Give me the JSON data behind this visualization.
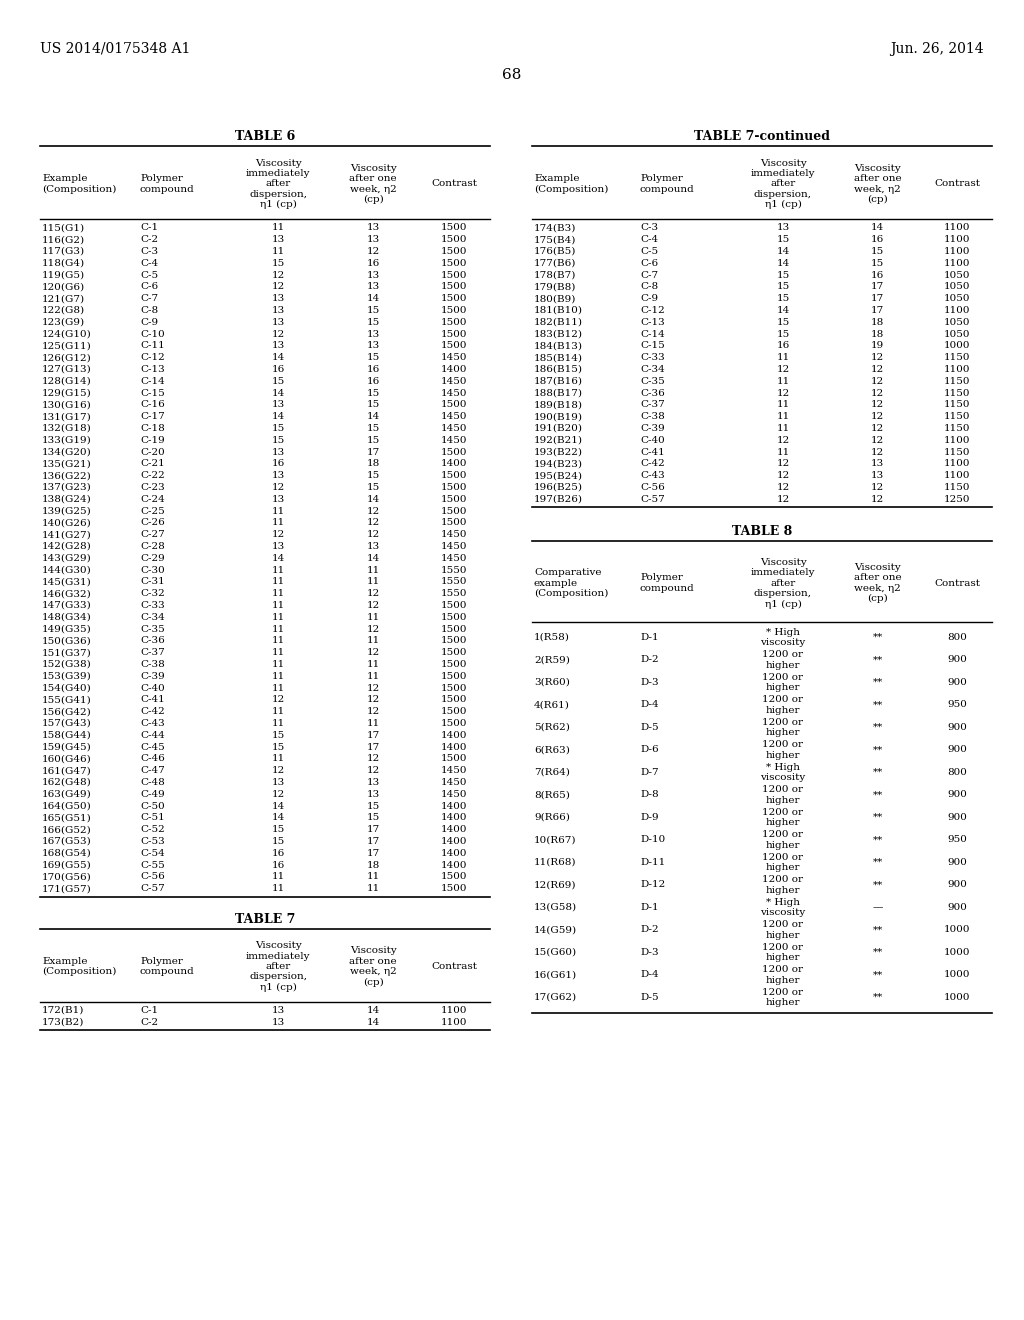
{
  "header_left": "US 2014/0175348 A1",
  "header_right": "Jun. 26, 2014",
  "page_number": "68",
  "table6_title": "TABLE 6",
  "table7c_title": "TABLE 7-continued",
  "table7_title": "TABLE 7",
  "table8_title": "TABLE 8",
  "col_headers_std": [
    "Example\n(Composition)",
    "Polymer\ncompound",
    "Viscosity\nimmediately\nafter\ndispersion,\nη1 (cp)",
    "Viscosity\nafter one\nweek, η2\n(cp)",
    "Contrast"
  ],
  "col_headers_t8": [
    "Comparative\nexample\n(Composition)",
    "Polymer\ncompound",
    "Viscosity\nimmediately\nafter\ndispersion,\nη1 (cp)",
    "Viscosity\nafter one\nweek, η2\n(cp)",
    "Contrast"
  ],
  "table6_data": [
    [
      "115(G1)",
      "C-1",
      "11",
      "13",
      "1500"
    ],
    [
      "116(G2)",
      "C-2",
      "13",
      "13",
      "1500"
    ],
    [
      "117(G3)",
      "C-3",
      "11",
      "12",
      "1500"
    ],
    [
      "118(G4)",
      "C-4",
      "15",
      "16",
      "1500"
    ],
    [
      "119(G5)",
      "C-5",
      "12",
      "13",
      "1500"
    ],
    [
      "120(G6)",
      "C-6",
      "12",
      "13",
      "1500"
    ],
    [
      "121(G7)",
      "C-7",
      "13",
      "14",
      "1500"
    ],
    [
      "122(G8)",
      "C-8",
      "13",
      "15",
      "1500"
    ],
    [
      "123(G9)",
      "C-9",
      "13",
      "15",
      "1500"
    ],
    [
      "124(G10)",
      "C-10",
      "12",
      "13",
      "1500"
    ],
    [
      "125(G11)",
      "C-11",
      "13",
      "13",
      "1500"
    ],
    [
      "126(G12)",
      "C-12",
      "14",
      "15",
      "1450"
    ],
    [
      "127(G13)",
      "C-13",
      "16",
      "16",
      "1400"
    ],
    [
      "128(G14)",
      "C-14",
      "15",
      "16",
      "1450"
    ],
    [
      "129(G15)",
      "C-15",
      "14",
      "15",
      "1450"
    ],
    [
      "130(G16)",
      "C-16",
      "13",
      "15",
      "1500"
    ],
    [
      "131(G17)",
      "C-17",
      "14",
      "14",
      "1450"
    ],
    [
      "132(G18)",
      "C-18",
      "15",
      "15",
      "1450"
    ],
    [
      "133(G19)",
      "C-19",
      "15",
      "15",
      "1450"
    ],
    [
      "134(G20)",
      "C-20",
      "13",
      "17",
      "1500"
    ],
    [
      "135(G21)",
      "C-21",
      "16",
      "18",
      "1400"
    ],
    [
      "136(G22)",
      "C-22",
      "13",
      "15",
      "1500"
    ],
    [
      "137(G23)",
      "C-23",
      "12",
      "15",
      "1500"
    ],
    [
      "138(G24)",
      "C-24",
      "13",
      "14",
      "1500"
    ],
    [
      "139(G25)",
      "C-25",
      "11",
      "12",
      "1500"
    ],
    [
      "140(G26)",
      "C-26",
      "11",
      "12",
      "1500"
    ],
    [
      "141(G27)",
      "C-27",
      "12",
      "12",
      "1450"
    ],
    [
      "142(G28)",
      "C-28",
      "13",
      "13",
      "1450"
    ],
    [
      "143(G29)",
      "C-29",
      "14",
      "14",
      "1450"
    ],
    [
      "144(G30)",
      "C-30",
      "11",
      "11",
      "1550"
    ],
    [
      "145(G31)",
      "C-31",
      "11",
      "11",
      "1550"
    ],
    [
      "146(G32)",
      "C-32",
      "11",
      "12",
      "1550"
    ],
    [
      "147(G33)",
      "C-33",
      "11",
      "12",
      "1500"
    ],
    [
      "148(G34)",
      "C-34",
      "11",
      "11",
      "1500"
    ],
    [
      "149(G35)",
      "C-35",
      "11",
      "12",
      "1500"
    ],
    [
      "150(G36)",
      "C-36",
      "11",
      "11",
      "1500"
    ],
    [
      "151(G37)",
      "C-37",
      "11",
      "12",
      "1500"
    ],
    [
      "152(G38)",
      "C-38",
      "11",
      "11",
      "1500"
    ],
    [
      "153(G39)",
      "C-39",
      "11",
      "11",
      "1500"
    ],
    [
      "154(G40)",
      "C-40",
      "11",
      "12",
      "1500"
    ],
    [
      "155(G41)",
      "C-41",
      "12",
      "12",
      "1500"
    ],
    [
      "156(G42)",
      "C-42",
      "11",
      "12",
      "1500"
    ],
    [
      "157(G43)",
      "C-43",
      "11",
      "11",
      "1500"
    ],
    [
      "158(G44)",
      "C-44",
      "15",
      "17",
      "1400"
    ],
    [
      "159(G45)",
      "C-45",
      "15",
      "17",
      "1400"
    ],
    [
      "160(G46)",
      "C-46",
      "11",
      "12",
      "1500"
    ],
    [
      "161(G47)",
      "C-47",
      "12",
      "12",
      "1450"
    ],
    [
      "162(G48)",
      "C-48",
      "13",
      "13",
      "1450"
    ],
    [
      "163(G49)",
      "C-49",
      "12",
      "13",
      "1450"
    ],
    [
      "164(G50)",
      "C-50",
      "14",
      "15",
      "1400"
    ],
    [
      "165(G51)",
      "C-51",
      "14",
      "15",
      "1400"
    ],
    [
      "166(G52)",
      "C-52",
      "15",
      "17",
      "1400"
    ],
    [
      "167(G53)",
      "C-53",
      "15",
      "17",
      "1400"
    ],
    [
      "168(G54)",
      "C-54",
      "16",
      "17",
      "1400"
    ],
    [
      "169(G55)",
      "C-55",
      "16",
      "18",
      "1400"
    ],
    [
      "170(G56)",
      "C-56",
      "11",
      "11",
      "1500"
    ],
    [
      "171(G57)",
      "C-57",
      "11",
      "11",
      "1500"
    ]
  ],
  "table7_data": [
    [
      "172(B1)",
      "C-1",
      "13",
      "14",
      "1100"
    ],
    [
      "173(B2)",
      "C-2",
      "13",
      "14",
      "1100"
    ],
    [
      "174(B3)",
      "C-3",
      "13",
      "14",
      "1100"
    ],
    [
      "175(B4)",
      "C-4",
      "15",
      "16",
      "1100"
    ],
    [
      "176(B5)",
      "C-5",
      "14",
      "15",
      "1100"
    ],
    [
      "177(B6)",
      "C-6",
      "14",
      "15",
      "1100"
    ],
    [
      "178(B7)",
      "C-7",
      "15",
      "16",
      "1050"
    ],
    [
      "179(B8)",
      "C-8",
      "15",
      "17",
      "1050"
    ],
    [
      "180(B9)",
      "C-9",
      "15",
      "17",
      "1050"
    ],
    [
      "181(B10)",
      "C-12",
      "14",
      "17",
      "1100"
    ],
    [
      "182(B11)",
      "C-13",
      "15",
      "18",
      "1050"
    ],
    [
      "183(B12)",
      "C-14",
      "15",
      "18",
      "1050"
    ],
    [
      "184(B13)",
      "C-15",
      "16",
      "19",
      "1000"
    ],
    [
      "185(B14)",
      "C-33",
      "11",
      "12",
      "1150"
    ],
    [
      "186(B15)",
      "C-34",
      "12",
      "12",
      "1100"
    ],
    [
      "187(B16)",
      "C-35",
      "11",
      "12",
      "1150"
    ],
    [
      "188(B17)",
      "C-36",
      "12",
      "12",
      "1150"
    ],
    [
      "189(B18)",
      "C-37",
      "11",
      "12",
      "1150"
    ],
    [
      "190(B19)",
      "C-38",
      "11",
      "12",
      "1150"
    ],
    [
      "191(B20)",
      "C-39",
      "11",
      "12",
      "1150"
    ],
    [
      "192(B21)",
      "C-40",
      "12",
      "12",
      "1100"
    ],
    [
      "193(B22)",
      "C-41",
      "11",
      "12",
      "1150"
    ],
    [
      "194(B23)",
      "C-42",
      "12",
      "13",
      "1100"
    ],
    [
      "195(B24)",
      "C-43",
      "12",
      "13",
      "1100"
    ],
    [
      "196(B25)",
      "C-56",
      "12",
      "12",
      "1150"
    ],
    [
      "197(B26)",
      "C-57",
      "12",
      "12",
      "1250"
    ]
  ],
  "table8_data": [
    [
      "1(R58)",
      "D-1",
      "* High\nviscosity",
      "**",
      "800"
    ],
    [
      "2(R59)",
      "D-2",
      "1200 or\nhigher",
      "**",
      "900"
    ],
    [
      "3(R60)",
      "D-3",
      "1200 or\nhigher",
      "**",
      "900"
    ],
    [
      "4(R61)",
      "D-4",
      "1200 or\nhigher",
      "**",
      "950"
    ],
    [
      "5(R62)",
      "D-5",
      "1200 or\nhigher",
      "**",
      "900"
    ],
    [
      "6(R63)",
      "D-6",
      "1200 or\nhigher",
      "**",
      "900"
    ],
    [
      "7(R64)",
      "D-7",
      "* High\nviscosity",
      "**",
      "800"
    ],
    [
      "8(R65)",
      "D-8",
      "1200 or\nhigher",
      "**",
      "900"
    ],
    [
      "9(R66)",
      "D-9",
      "1200 or\nhigher",
      "**",
      "900"
    ],
    [
      "10(R67)",
      "D-10",
      "1200 or\nhigher",
      "**",
      "950"
    ],
    [
      "11(R68)",
      "D-11",
      "1200 or\nhigher",
      "**",
      "900"
    ],
    [
      "12(R69)",
      "D-12",
      "1200 or\nhigher",
      "**",
      "900"
    ],
    [
      "13(G58)",
      "D-1",
      "* High\nviscosity",
      "—",
      "900"
    ],
    [
      "14(G59)",
      "D-2",
      "1200 or\nhigher",
      "**",
      "1000"
    ],
    [
      "15(G60)",
      "D-3",
      "1200 or\nhigher",
      "**",
      "1000"
    ],
    [
      "16(G61)",
      "D-4",
      "1200 or\nhigher",
      "**",
      "1000"
    ],
    [
      "17(G62)",
      "D-5",
      "1200 or\nhigher",
      "**",
      "1000"
    ]
  ]
}
